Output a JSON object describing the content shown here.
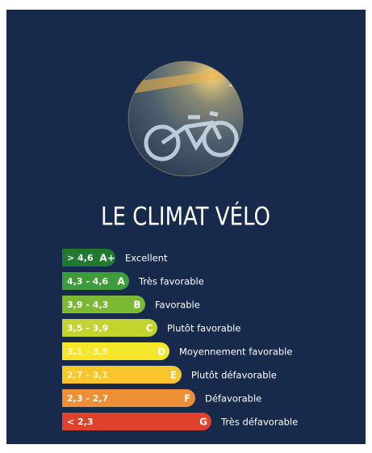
{
  "title": "LE CLIMAT VÉLO",
  "scale": [
    {
      "range": "> 4,6",
      "grade": "A+",
      "label": "Excellent",
      "color": "#1f7a30"
    },
    {
      "range": "4,3 - 4,6",
      "grade": "A",
      "label": "Très favorable",
      "color": "#3f9c3a"
    },
    {
      "range": "3,9 - 4,3",
      "grade": "B",
      "label": "Favorable",
      "color": "#7bb934"
    },
    {
      "range": "3,5 - 3,9",
      "grade": "C",
      "label": "Plutôt favorable",
      "color": "#c2d42d"
    },
    {
      "range": "3,1 - 3,5",
      "grade": "D",
      "label": "Moyennement favorable",
      "color": "#f4e62b"
    },
    {
      "range": "2,7 - 3,1",
      "grade": "E",
      "label": "Plutôt défavorable",
      "color": "#f8c52c"
    },
    {
      "range": "2,3 - 2,7",
      "grade": "F",
      "label": "Défavorable",
      "color": "#ee8e36"
    },
    {
      "range": "< 2,3",
      "grade": "G",
      "label": "Très défavorable",
      "color": "#e0412a"
    }
  ]
}
